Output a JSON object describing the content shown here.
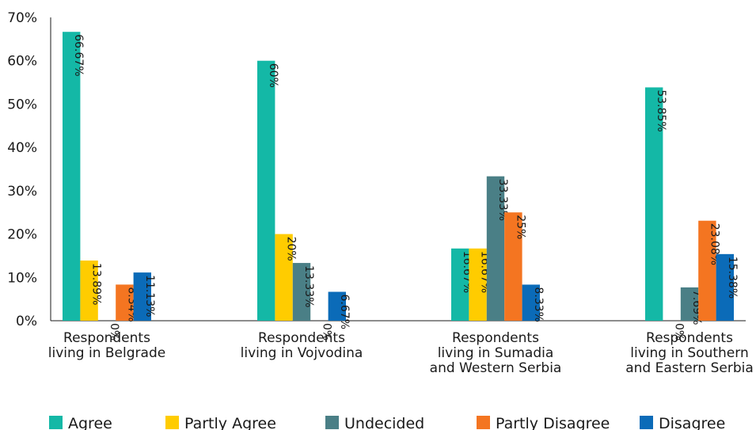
{
  "chart_data": {
    "type": "bar",
    "categories": [
      [
        "Respondents",
        "living in Belgrade"
      ],
      [
        "Respondents",
        "living in Vojvodina"
      ],
      [
        "Respondents",
        "living in Sumadia",
        "and Western Serbia"
      ],
      [
        "Respondents",
        "living in Southern",
        "and Eastern Serbia"
      ]
    ],
    "series": [
      {
        "name": "Agree",
        "color": "#14b8a6",
        "values": [
          66.67,
          60,
          16.67,
          53.85
        ],
        "labels": [
          "66.67%",
          "60%",
          "16.67%",
          "53.85%"
        ]
      },
      {
        "name": "Partly Agree",
        "color": "#ffcc00",
        "values": [
          13.89,
          20,
          16.67,
          0
        ],
        "labels": [
          "13.89%",
          "20%",
          "16.67%",
          "0%"
        ]
      },
      {
        "name": "Undecided",
        "color": "#4a7f86",
        "values": [
          0,
          13.33,
          33.33,
          7.69
        ],
        "labels": [
          "0%",
          "13.33%",
          "33.33%",
          "7.69%"
        ]
      },
      {
        "name": "Partly Disagree",
        "color": "#f47521",
        "values": [
          8.34,
          0,
          25,
          23.08
        ],
        "labels": [
          "8.34%",
          "0%",
          "25%",
          "23.08%"
        ]
      },
      {
        "name": "Disagree",
        "color": "#0b6bb8",
        "values": [
          11.13,
          6.67,
          8.33,
          15.38
        ],
        "labels": [
          "11.13%",
          "6.67%",
          "8.33%",
          "15.38%"
        ]
      }
    ],
    "yticks": [
      "0%",
      "10%",
      "20%",
      "30%",
      "40%",
      "50%",
      "60%",
      "70%"
    ],
    "ylim": [
      0,
      70
    ],
    "xlabel": "",
    "ylabel": "",
    "title": "",
    "grid": false,
    "legend_position": "bottom"
  }
}
